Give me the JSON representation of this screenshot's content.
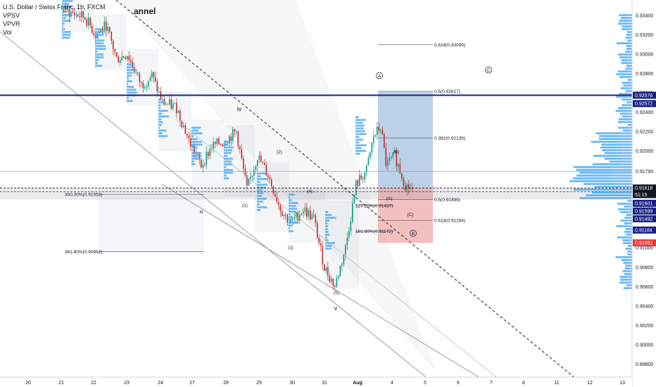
{
  "header": {
    "symbol": "U.S. Dollar / Swiss Franc, 1h, FXCM",
    "indicators": [
      "VPSV",
      "VPVR",
      "Vol"
    ]
  },
  "channel_label": "annel",
  "chart_data": {
    "type": "candlestick",
    "symbol": "USDCHF",
    "timeframe": "1h",
    "ylim": [
      0.898,
      0.935
    ],
    "x_ticks": [
      "20",
      "21",
      "22",
      "23",
      "24",
      "27",
      "28",
      "29",
      "30",
      "31",
      "Aug",
      "4",
      "5",
      "6",
      "7",
      "8",
      "11",
      "12",
      "13"
    ],
    "y_ticks": [
      "0.93400",
      "0.93200",
      "0.93000",
      "0.92800",
      "0.92600",
      "0.92400",
      "0.92200",
      "0.92000",
      "0.91790",
      "0.91600",
      "0.91400",
      "0.91200",
      "0.91000",
      "0.90800",
      "0.90600",
      "0.90400",
      "0.90200",
      "0.90000",
      "0.89800"
    ],
    "price_badges": [
      {
        "label": "0.92576",
        "value": 0.92576,
        "color": "#1a237e"
      },
      {
        "label": "0.92572",
        "value": 0.9249,
        "color": "#1a237e"
      },
      {
        "label": "0.91618",
        "value": 0.91618,
        "color": "#131722"
      },
      {
        "label": "51:15",
        "value": 0.9155,
        "color": "#131722"
      },
      {
        "label": "0.91601",
        "value": 0.9146,
        "color": "#1a237e"
      },
      {
        "label": "0.91599",
        "value": 0.9138,
        "color": "#1a237e"
      },
      {
        "label": "0.91492",
        "value": 0.913,
        "color": "#1a237e"
      },
      {
        "label": "0.91184",
        "value": 0.91184,
        "color": "#1a237e"
      },
      {
        "label": "0.91051",
        "value": 0.91051,
        "color": "#e53935"
      }
    ],
    "fib_levels": [
      {
        "label": "0.618(0.93099)",
        "value": 0.93099
      },
      {
        "label": "0.5(0.92617)",
        "value": 0.92617
      },
      {
        "label": "0.382(0.92135)",
        "value": 0.92135
      },
      {
        "label": "0.5(0.91499)",
        "value": 0.91499
      },
      {
        "label": "0.618(0.91284)",
        "value": 0.91284
      },
      {
        "label": "300.00%(0.91553)",
        "value": 0.91553
      },
      {
        "label": "127.20%(0.91437)",
        "value": 0.91437
      },
      {
        "label": "161.80%(0.91172)",
        "value": 0.91172
      },
      {
        "label": "361.80%(0.90962)",
        "value": 0.90962
      }
    ],
    "wave_labels": [
      "iv",
      "iii",
      "v",
      "(1)",
      "(2)",
      "(3)",
      "(4)",
      "(5)",
      "(A)",
      "(B)",
      "(C)",
      "A",
      "B",
      "C"
    ],
    "horizontal_lines": [
      0.92576,
      0.9179,
      0.91618
    ]
  }
}
